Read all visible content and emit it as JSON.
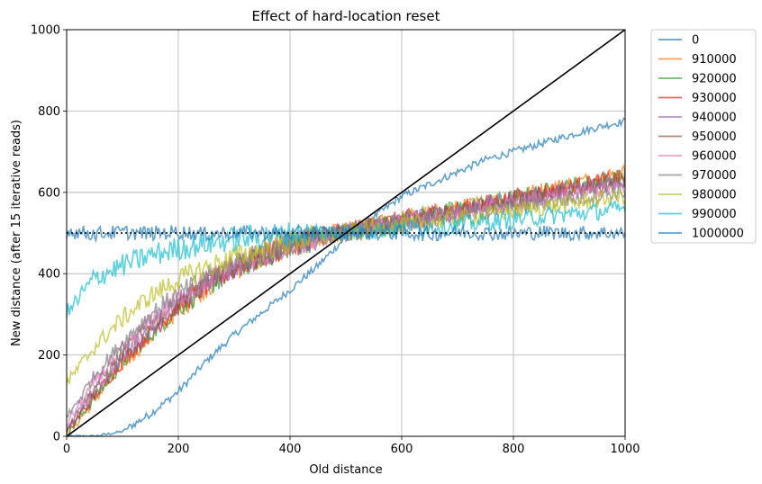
{
  "chart_data": {
    "type": "line",
    "title": "Effect of hard-location reset",
    "xlabel": "Old distance",
    "ylabel": "New distance (after 15 iterative reads)",
    "xlim": [
      0,
      1000
    ],
    "ylim": [
      0,
      1000
    ],
    "xticks": [
      "0",
      "200",
      "400",
      "600",
      "800",
      "1000"
    ],
    "yticks": [
      "0",
      "200",
      "400",
      "600",
      "800",
      "1000"
    ],
    "grid": true,
    "legend_position": "outside-right",
    "reference_lines": [
      {
        "kind": "diagonal",
        "from": [
          0,
          0
        ],
        "to": [
          1000,
          1000
        ],
        "color": "#000000"
      },
      {
        "kind": "horizontal-dotted",
        "y": 500,
        "color": "#000000"
      }
    ],
    "series": [
      {
        "name": "0",
        "color": "#1f77b4",
        "x": [
          0,
          50,
          100,
          150,
          200,
          250,
          300,
          350,
          400,
          450,
          500,
          550,
          600,
          650,
          700,
          750,
          800,
          850,
          900,
          950,
          1000
        ],
        "y": [
          0,
          0,
          12,
          55,
          110,
          185,
          250,
          305,
          360,
          420,
          490,
          540,
          590,
          620,
          650,
          680,
          700,
          720,
          740,
          760,
          775
        ]
      },
      {
        "name": "910000",
        "color": "#ff7f0e",
        "x": [
          0,
          50,
          100,
          150,
          200,
          250,
          300,
          350,
          400,
          450,
          500,
          550,
          600,
          650,
          700,
          750,
          800,
          850,
          900,
          950,
          1000
        ],
        "y": [
          0,
          90,
          175,
          245,
          310,
          365,
          410,
          440,
          470,
          490,
          505,
          520,
          535,
          548,
          560,
          575,
          590,
          605,
          620,
          635,
          650
        ]
      },
      {
        "name": "920000",
        "color": "#2ca02c",
        "x": [
          0,
          50,
          100,
          150,
          200,
          250,
          300,
          350,
          400,
          450,
          500,
          550,
          600,
          650,
          700,
          750,
          800,
          850,
          900,
          950,
          1000
        ],
        "y": [
          5,
          95,
          180,
          250,
          315,
          365,
          410,
          440,
          468,
          488,
          503,
          518,
          533,
          546,
          558,
          572,
          586,
          600,
          614,
          628,
          640
        ]
      },
      {
        "name": "930000",
        "color": "#d62728",
        "x": [
          0,
          50,
          100,
          150,
          200,
          250,
          300,
          350,
          400,
          450,
          500,
          550,
          600,
          650,
          700,
          750,
          800,
          850,
          900,
          950,
          1000
        ],
        "y": [
          10,
          100,
          185,
          255,
          320,
          370,
          412,
          442,
          470,
          490,
          504,
          519,
          534,
          547,
          559,
          573,
          587,
          600,
          613,
          626,
          638
        ]
      },
      {
        "name": "940000",
        "color": "#9467bd",
        "x": [
          0,
          50,
          100,
          150,
          200,
          250,
          300,
          350,
          400,
          450,
          500,
          550,
          600,
          650,
          700,
          750,
          800,
          850,
          900,
          950,
          1000
        ],
        "y": [
          15,
          110,
          195,
          265,
          325,
          372,
          414,
          444,
          470,
          489,
          503,
          517,
          531,
          543,
          555,
          568,
          581,
          594,
          606,
          618,
          630
        ]
      },
      {
        "name": "950000",
        "color": "#8c564b",
        "x": [
          0,
          50,
          100,
          150,
          200,
          250,
          300,
          350,
          400,
          450,
          500,
          550,
          600,
          650,
          700,
          750,
          800,
          850,
          900,
          950,
          1000
        ],
        "y": [
          20,
          120,
          205,
          275,
          332,
          378,
          418,
          446,
          471,
          489,
          502,
          515,
          528,
          540,
          552,
          564,
          576,
          588,
          600,
          612,
          624
        ]
      },
      {
        "name": "960000",
        "color": "#e377c2",
        "x": [
          0,
          50,
          100,
          150,
          200,
          250,
          300,
          350,
          400,
          450,
          500,
          550,
          600,
          650,
          700,
          750,
          800,
          850,
          900,
          950,
          1000
        ],
        "y": [
          30,
          135,
          215,
          285,
          340,
          383,
          420,
          448,
          472,
          489,
          501,
          513,
          525,
          537,
          548,
          559,
          570,
          581,
          592,
          603,
          614
        ]
      },
      {
        "name": "970000",
        "color": "#7f7f7f",
        "x": [
          0,
          50,
          100,
          150,
          200,
          250,
          300,
          350,
          400,
          450,
          500,
          550,
          600,
          650,
          700,
          750,
          800,
          850,
          900,
          950,
          1000
        ],
        "y": [
          45,
          150,
          230,
          300,
          350,
          390,
          425,
          450,
          473,
          489,
          500,
          511,
          522,
          533,
          543,
          553,
          563,
          573,
          583,
          593,
          603
        ]
      },
      {
        "name": "980000",
        "color": "#bcbd22",
        "x": [
          0,
          50,
          100,
          150,
          200,
          250,
          300,
          350,
          400,
          450,
          500,
          550,
          600,
          650,
          700,
          750,
          800,
          850,
          900,
          950,
          1000
        ],
        "y": [
          130,
          220,
          290,
          345,
          385,
          415,
          440,
          460,
          478,
          491,
          500,
          509,
          518,
          527,
          536,
          545,
          554,
          563,
          572,
          581,
          590
        ]
      },
      {
        "name": "990000",
        "color": "#17becf",
        "x": [
          0,
          50,
          100,
          150,
          200,
          250,
          300,
          350,
          400,
          450,
          500,
          550,
          600,
          650,
          700,
          750,
          800,
          850,
          900,
          950,
          1000
        ],
        "y": [
          300,
          390,
          420,
          445,
          462,
          475,
          485,
          492,
          497,
          500,
          502,
          506,
          510,
          515,
          520,
          527,
          533,
          540,
          547,
          553,
          560
        ]
      },
      {
        "name": "1000000",
        "color": "#1f77b4",
        "x": [
          0,
          50,
          100,
          150,
          200,
          250,
          300,
          350,
          400,
          450,
          500,
          550,
          600,
          650,
          700,
          750,
          800,
          850,
          900,
          950,
          1000
        ],
        "y": [
          505,
          498,
          502,
          499,
          503,
          497,
          501,
          500,
          498,
          502,
          500,
          499,
          501,
          497,
          503,
          500,
          498,
          502,
          499,
          501,
          500
        ]
      }
    ]
  }
}
